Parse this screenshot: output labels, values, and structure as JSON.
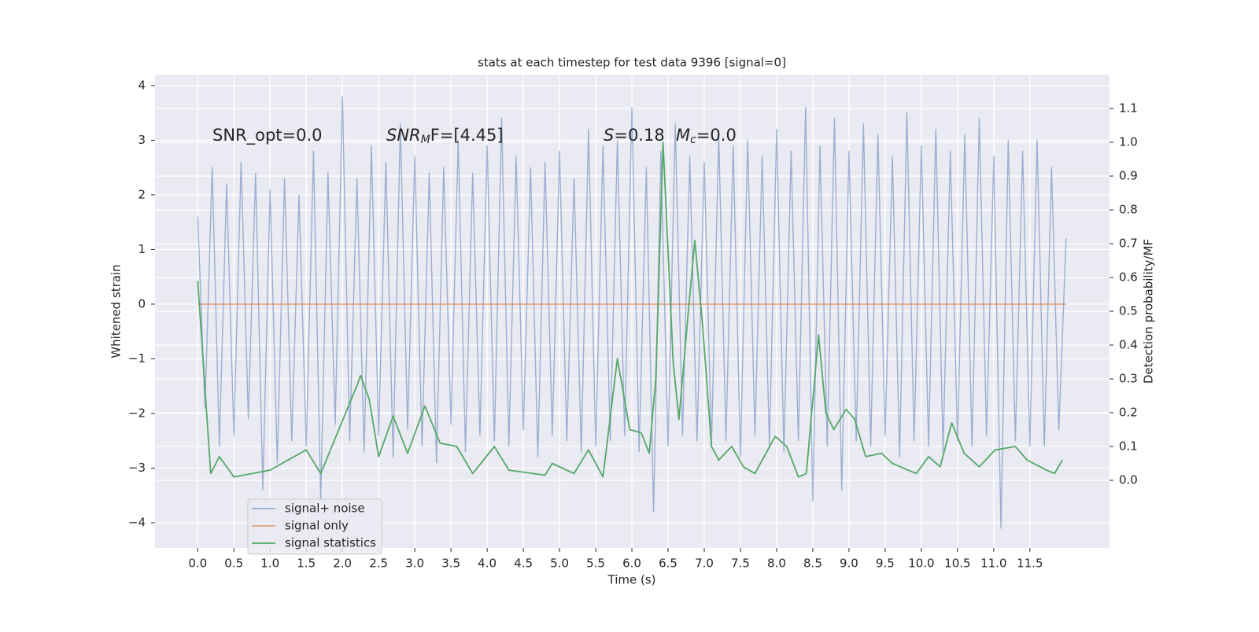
{
  "chart_data": {
    "type": "line",
    "title": "stats at each timestep for test data 9396 [signal=0]",
    "xlabel": "Time (s)",
    "ylabel": "Whitened strain",
    "y2label": "Detection probability/MF",
    "grid": true,
    "legend": "lower left",
    "xlim": [
      -0.59,
      12.6
    ],
    "ylim": [
      -4.46,
      4.2
    ],
    "y2lim": [
      -0.2,
      1.2
    ],
    "xticks": [
      {
        "value": 0,
        "label": "0.0"
      },
      0.5,
      {
        "value": 1,
        "label": "1.0"
      },
      1.5,
      {
        "value": 2,
        "label": "2.0"
      },
      2.5,
      {
        "value": 3,
        "label": "3.0"
      },
      3.5,
      {
        "value": 4,
        "label": "4.0"
      },
      4.5,
      {
        "value": 5,
        "label": "5.0"
      },
      5.5,
      {
        "value": 6,
        "label": "6.0"
      },
      6.5,
      {
        "value": 7,
        "label": "7.0"
      },
      7.5,
      {
        "value": 8,
        "label": "8.0"
      },
      8.5,
      {
        "value": 9,
        "label": "9.0"
      },
      9.5,
      {
        "value": 10,
        "label": "10.0"
      },
      10.5,
      {
        "value": 11,
        "label": "11.0"
      },
      11.5
    ],
    "yticks": [
      {
        "value": -4,
        "label": "−4"
      },
      {
        "value": -3,
        "label": "−3"
      },
      {
        "value": -2,
        "label": "−2"
      },
      {
        "value": -1,
        "label": "−1"
      },
      0,
      1,
      2,
      3,
      4
    ],
    "y2ticks": [
      {
        "value": 0,
        "label": "0.0"
      },
      0.1,
      0.2,
      0.3,
      0.4,
      0.5,
      0.6,
      0.7,
      0.8,
      0.9,
      {
        "value": 1,
        "label": "1.0"
      },
      1.1
    ],
    "annotations": [
      {
        "parts": [
          {
            "text": "SNR_opt=0.0"
          }
        ]
      },
      {
        "parts": [
          {
            "text": "SNR",
            "style": "italic"
          },
          {
            "text": "M",
            "style": "sub"
          },
          {
            "text": "F=[4.45]"
          }
        ]
      },
      {
        "parts": [
          {
            "text": "S",
            "style": "italic"
          },
          {
            "text": "=0.18"
          }
        ]
      },
      {
        "parts": [
          {
            "text": "M",
            "style": "italic"
          },
          {
            "text": "c",
            "style": "sub"
          },
          {
            "text": "=0.0"
          }
        ]
      }
    ],
    "series": [
      {
        "name": "signal+ noise",
        "color": "#4c72b0",
        "opacity": 0.5,
        "x": [
          0.0,
          0.1,
          0.2,
          0.3,
          0.4,
          0.5,
          0.6,
          0.7,
          0.8,
          0.9,
          1.0,
          1.1,
          1.2,
          1.3,
          1.4,
          1.5,
          1.6,
          1.7,
          1.8,
          1.9,
          2.0,
          2.1,
          2.2,
          2.3,
          2.4,
          2.5,
          2.6,
          2.7,
          2.8,
          2.9,
          3.0,
          3.1,
          3.2,
          3.3,
          3.4,
          3.5,
          3.6,
          3.7,
          3.8,
          3.9,
          4.0,
          4.1,
          4.2,
          4.3,
          4.4,
          4.5,
          4.6,
          4.7,
          4.8,
          4.9,
          5.0,
          5.1,
          5.2,
          5.3,
          5.4,
          5.5,
          5.6,
          5.7,
          5.8,
          5.9,
          6.0,
          6.1,
          6.2,
          6.3,
          6.4,
          6.5,
          6.6,
          6.7,
          6.8,
          6.9,
          7.0,
          7.1,
          7.2,
          7.3,
          7.4,
          7.5,
          7.6,
          7.7,
          7.8,
          7.9,
          8.0,
          8.1,
          8.2,
          8.3,
          8.4,
          8.5,
          8.6,
          8.7,
          8.8,
          8.9,
          9.0,
          9.1,
          9.2,
          9.3,
          9.4,
          9.5,
          9.6,
          9.7,
          9.8,
          9.9,
          10.0,
          10.1,
          10.2,
          10.3,
          10.4,
          10.5,
          10.6,
          10.7,
          10.8,
          10.9,
          11.0,
          11.1,
          11.2,
          11.3,
          11.4,
          11.5,
          11.6,
          11.7,
          11.8,
          11.9,
          12.0
        ],
        "values": [
          1.6,
          -1.9,
          2.5,
          -2.6,
          2.2,
          -2.4,
          2.6,
          -2.1,
          2.4,
          -3.4,
          2.1,
          -2.9,
          2.3,
          -2.5,
          2.0,
          -2.6,
          2.8,
          -3.6,
          2.4,
          -2.2,
          3.8,
          -2.5,
          2.3,
          -2.7,
          2.9,
          -2.4,
          2.6,
          -2.8,
          3.3,
          -2.3,
          2.7,
          -2.6,
          2.4,
          -2.9,
          2.5,
          -2.2,
          3.0,
          -2.7,
          2.4,
          -2.4,
          2.9,
          -2.5,
          3.4,
          -2.6,
          2.7,
          -2.3,
          2.5,
          -2.8,
          2.6,
          -2.4,
          2.8,
          -2.5,
          2.3,
          -2.7,
          3.2,
          -2.6,
          2.9,
          -2.5,
          3.0,
          -2.4,
          3.6,
          -2.7,
          2.5,
          -3.8,
          2.8,
          -2.6,
          3.3,
          -2.4,
          2.7,
          -2.5,
          2.6,
          -2.6,
          3.1,
          -2.5,
          2.9,
          -2.8,
          3.0,
          -2.4,
          2.7,
          -2.6,
          3.2,
          -2.7,
          2.8,
          -2.5,
          3.6,
          -3.6,
          2.9,
          -2.6,
          3.4,
          -3.4,
          2.8,
          -2.5,
          3.3,
          -2.6,
          3.1,
          -2.4,
          2.7,
          -2.8,
          3.5,
          -2.5,
          2.9,
          -2.6,
          3.2,
          -2.7,
          2.8,
          -2.5,
          3.1,
          -2.6,
          3.4,
          -2.4,
          2.7,
          -4.1,
          3.0,
          -2.5,
          2.8,
          -2.6,
          3.0,
          -2.6,
          2.5,
          -2.3,
          1.2
        ]
      },
      {
        "name": "signal only",
        "color": "#dd8452",
        "opacity": 0.7,
        "x": [
          0.0,
          12.0
        ],
        "values": [
          0,
          0
        ]
      },
      {
        "name": "signal statistics",
        "color": "#55a868",
        "opacity": 1,
        "axis": "y2",
        "x": [
          0.0,
          0.18,
          0.3,
          0.5,
          1.0,
          1.5,
          1.7,
          2.2,
          2.25,
          2.37,
          2.5,
          2.7,
          2.9,
          3.14,
          3.35,
          3.58,
          3.8,
          4.1,
          4.3,
          4.8,
          4.9,
          5.2,
          5.4,
          5.6,
          5.8,
          5.97,
          6.13,
          6.24,
          6.33,
          6.43,
          6.57,
          6.65,
          6.78,
          6.87,
          6.98,
          7.1,
          7.2,
          7.38,
          7.54,
          7.7,
          7.98,
          8.14,
          8.3,
          8.41,
          8.58,
          8.68,
          8.79,
          8.96,
          9.08,
          9.23,
          9.45,
          9.6,
          9.93,
          10.1,
          10.26,
          10.42,
          10.59,
          10.8,
          11.02,
          11.3,
          11.46,
          11.73,
          11.84,
          11.95
        ],
        "values": [
          0.59,
          0.02,
          0.07,
          0.01,
          0.03,
          0.09,
          0.02,
          0.28,
          0.31,
          0.24,
          0.07,
          0.19,
          0.08,
          0.22,
          0.11,
          0.1,
          0.02,
          0.1,
          0.03,
          0.015,
          0.05,
          0.02,
          0.09,
          0.01,
          0.36,
          0.15,
          0.14,
          0.08,
          0.3,
          1.0,
          0.35,
          0.18,
          0.5,
          0.71,
          0.45,
          0.1,
          0.06,
          0.1,
          0.04,
          0.02,
          0.13,
          0.1,
          0.01,
          0.02,
          0.43,
          0.2,
          0.15,
          0.21,
          0.18,
          0.07,
          0.08,
          0.05,
          0.02,
          0.07,
          0.04,
          0.17,
          0.08,
          0.04,
          0.09,
          0.1,
          0.06,
          0.03,
          0.02,
          0.06
        ]
      }
    ]
  }
}
